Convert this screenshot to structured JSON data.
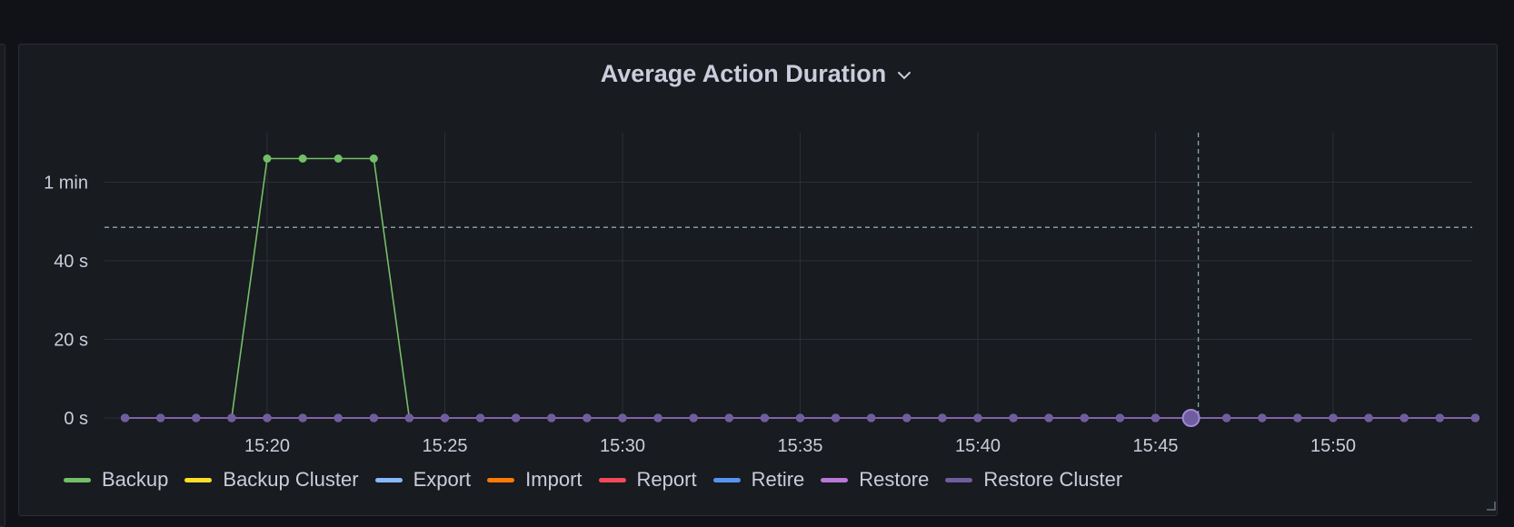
{
  "panel": {
    "title": "Average Action Duration",
    "menu_icon": "chevron-down-icon"
  },
  "chart_data": {
    "type": "line",
    "title": "Average Action Duration",
    "xlabel": "",
    "ylabel": "",
    "x_ticks": [
      "15:20",
      "15:25",
      "15:30",
      "15:35",
      "15:40",
      "15:45",
      "15:50"
    ],
    "y_ticks": [
      "0 s",
      "20 s",
      "40 s",
      "1 min"
    ],
    "ylim_seconds": [
      0,
      66
    ],
    "x_start": "15:16",
    "x_step_minutes": 1,
    "grid": true,
    "threshold_seconds": 48.5,
    "cursor_time": "15:46",
    "legend_position": "bottom-left",
    "series": [
      {
        "name": "Backup",
        "color": "#73bf69",
        "values": [
          0,
          0,
          0,
          0,
          66,
          66,
          66,
          66,
          0,
          0,
          0,
          0,
          0,
          0,
          0,
          0,
          0,
          0,
          0,
          0,
          0,
          0,
          0,
          0,
          0,
          0,
          0,
          0,
          0,
          0,
          0,
          0,
          0,
          0,
          0,
          0,
          0,
          0,
          0
        ]
      },
      {
        "name": "Backup Cluster",
        "color": "#fade2a",
        "values": [
          0,
          0,
          0,
          0,
          0,
          0,
          0,
          0,
          0,
          0,
          0,
          0,
          0,
          0,
          0,
          0,
          0,
          0,
          0,
          0,
          0,
          0,
          0,
          0,
          0,
          0,
          0,
          0,
          0,
          0,
          0,
          0,
          0,
          0,
          0,
          0,
          0,
          0,
          0
        ]
      },
      {
        "name": "Export",
        "color": "#8ab8ff",
        "values": [
          0,
          0,
          0,
          0,
          0,
          0,
          0,
          0,
          0,
          0,
          0,
          0,
          0,
          0,
          0,
          0,
          0,
          0,
          0,
          0,
          0,
          0,
          0,
          0,
          0,
          0,
          0,
          0,
          0,
          0,
          0,
          0,
          0,
          0,
          0,
          0,
          0,
          0,
          0
        ]
      },
      {
        "name": "Import",
        "color": "#ff780a",
        "values": [
          0,
          0,
          0,
          0,
          0,
          0,
          0,
          0,
          0,
          0,
          0,
          0,
          0,
          0,
          0,
          0,
          0,
          0,
          0,
          0,
          0,
          0,
          0,
          0,
          0,
          0,
          0,
          0,
          0,
          0,
          0,
          0,
          0,
          0,
          0,
          0,
          0,
          0,
          0
        ]
      },
      {
        "name": "Report",
        "color": "#f2495c",
        "values": [
          0,
          0,
          0,
          0,
          0,
          0,
          0,
          0,
          0,
          0,
          0,
          0,
          0,
          0,
          0,
          0,
          0,
          0,
          0,
          0,
          0,
          0,
          0,
          0,
          0,
          0,
          0,
          0,
          0,
          0,
          0,
          0,
          0,
          0,
          0,
          0,
          0,
          0,
          0
        ]
      },
      {
        "name": "Retire",
        "color": "#5794f2",
        "values": [
          0,
          0,
          0,
          0,
          0,
          0,
          0,
          0,
          0,
          0,
          0,
          0,
          0,
          0,
          0,
          0,
          0,
          0,
          0,
          0,
          0,
          0,
          0,
          0,
          0,
          0,
          0,
          0,
          0,
          0,
          0,
          0,
          0,
          0,
          0,
          0,
          0,
          0,
          0
        ]
      },
      {
        "name": "Restore",
        "color": "#b877d9",
        "values": [
          0,
          0,
          0,
          0,
          0,
          0,
          0,
          0,
          0,
          0,
          0,
          0,
          0,
          0,
          0,
          0,
          0,
          0,
          0,
          0,
          0,
          0,
          0,
          0,
          0,
          0,
          0,
          0,
          0,
          0,
          0,
          0,
          0,
          0,
          0,
          0,
          0,
          0,
          0
        ]
      },
      {
        "name": "Restore Cluster",
        "color": "#705da0",
        "values": [
          0,
          0,
          0,
          0,
          0,
          0,
          0,
          0,
          0,
          0,
          0,
          0,
          0,
          0,
          0,
          0,
          0,
          0,
          0,
          0,
          0,
          0,
          0,
          0,
          0,
          0,
          0,
          0,
          0,
          0,
          0,
          0,
          0,
          0,
          0,
          0,
          0,
          0,
          0
        ]
      }
    ]
  }
}
